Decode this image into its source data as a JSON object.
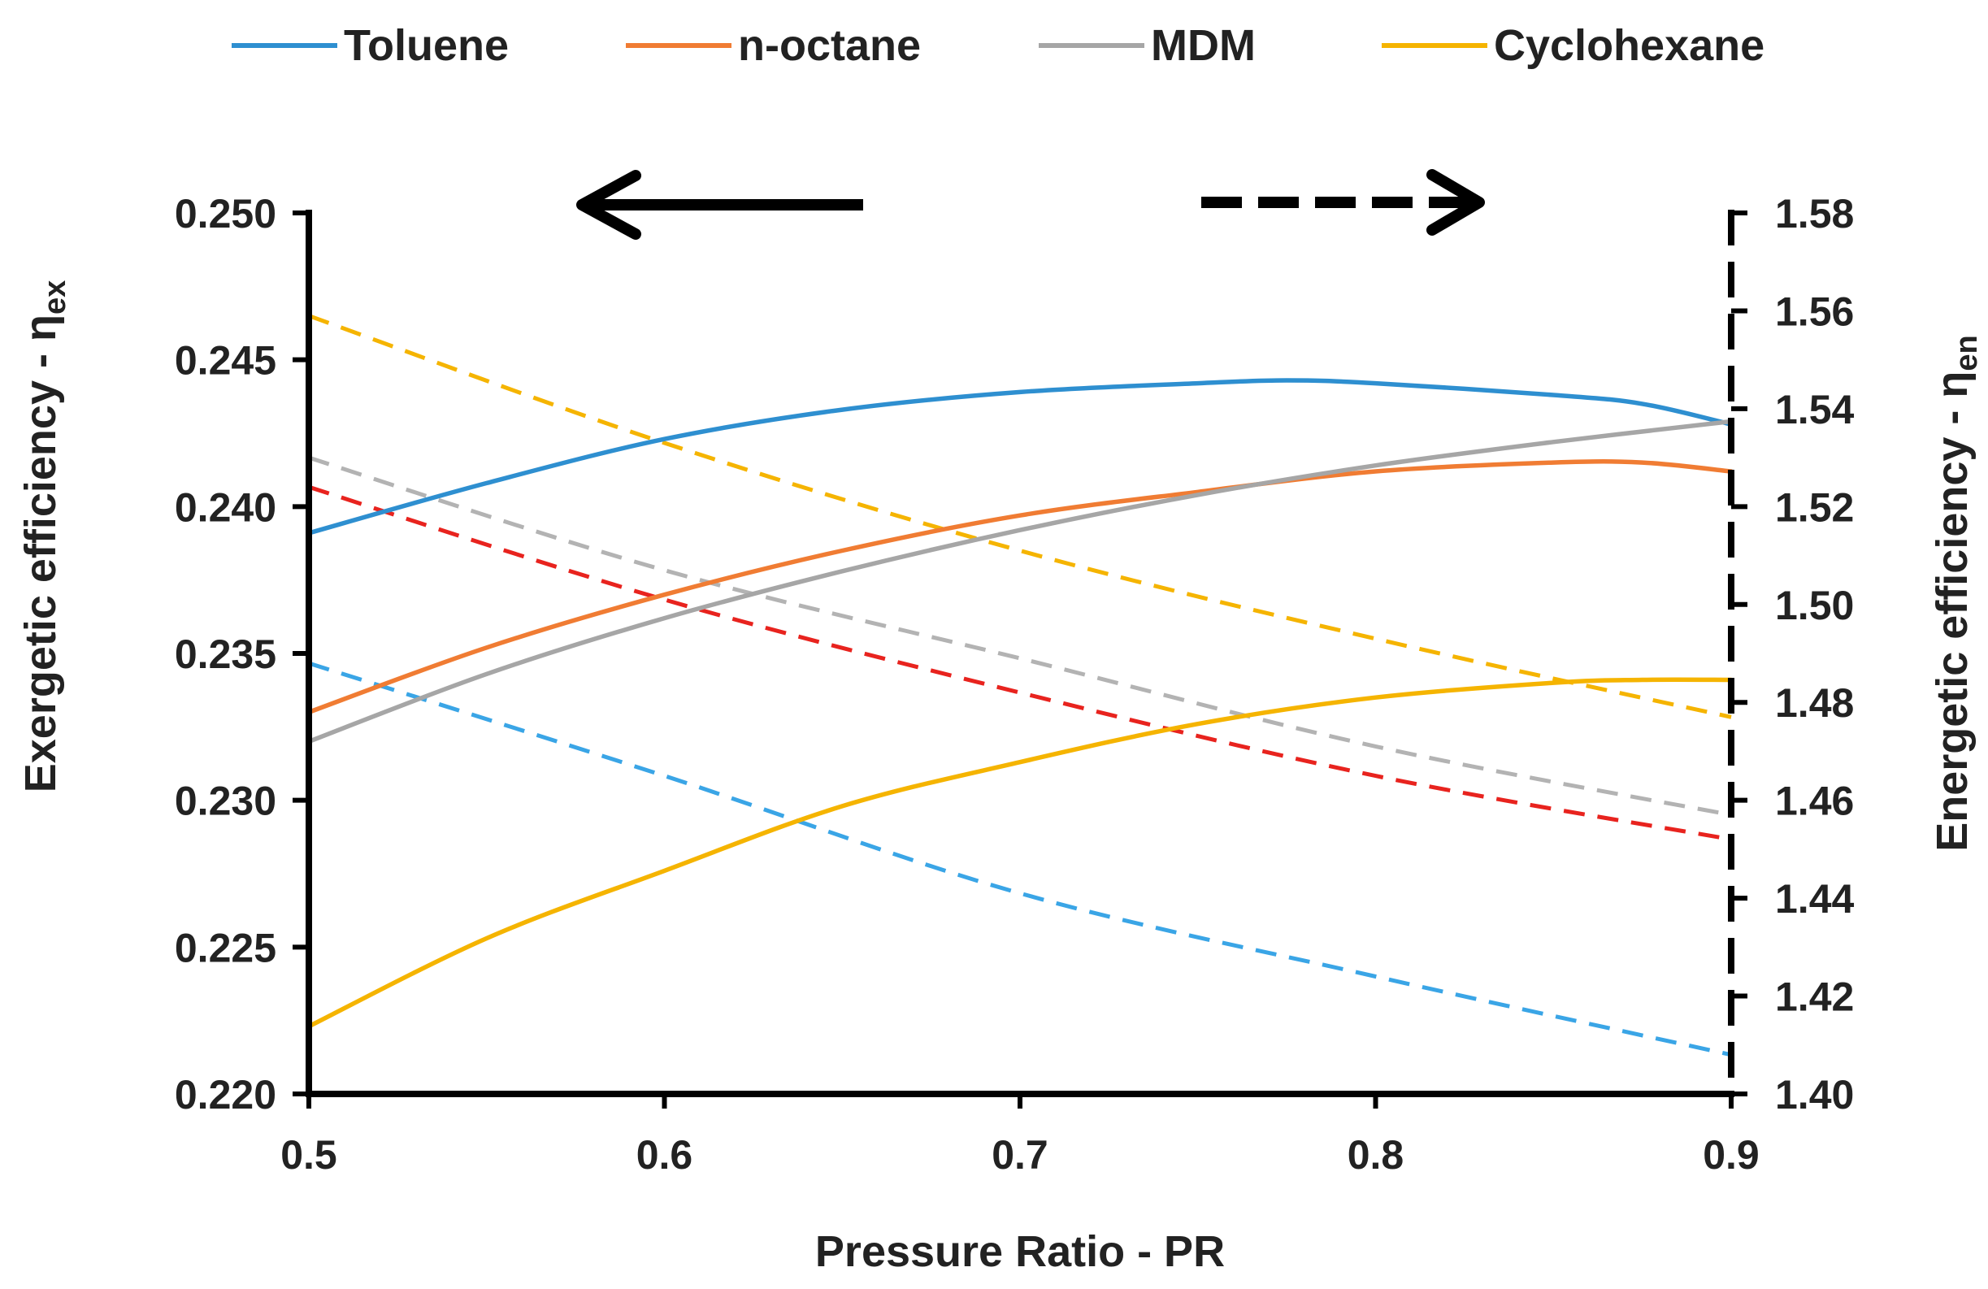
{
  "chart_data": {
    "type": "line",
    "title": "",
    "xlabel": "Pressure Ratio - PR",
    "ylabel_left": "Exergetic efficiency - ",
    "ylabel_left_sub": "ex",
    "ylabel_left_symbol": "η",
    "ylabel_right": "Energetic efficiency - ",
    "ylabel_right_sub": "en",
    "ylabel_right_symbol": "η",
    "xlim": [
      0.5,
      0.9
    ],
    "ylim_left": [
      0.22,
      0.25
    ],
    "ylim_right": [
      1.4,
      1.58
    ],
    "x_ticks": [
      "0.5",
      "0.6",
      "0.7",
      "0.8",
      "0.9"
    ],
    "y_left_ticks": [
      "0.220",
      "0.225",
      "0.230",
      "0.235",
      "0.240",
      "0.245",
      "0.250"
    ],
    "y_right_ticks": [
      "1.40",
      "1.42",
      "1.44",
      "1.46",
      "1.48",
      "1.50",
      "1.52",
      "1.54",
      "1.56",
      "1.58"
    ],
    "legend_position": "top",
    "annotations": [
      {
        "type": "arrow",
        "style": "solid",
        "direction": "left",
        "meaning": "solid lines use left axis"
      },
      {
        "type": "arrow",
        "style": "dashed",
        "direction": "right",
        "meaning": "dashed lines use right axis"
      }
    ],
    "exergetic_series": [
      {
        "name": "Toluene",
        "color": "#2e8fd0",
        "axis": "left",
        "style": "solid",
        "x": [
          0.5,
          0.55,
          0.6,
          0.65,
          0.7,
          0.75,
          0.775,
          0.8,
          0.85,
          0.875,
          0.9
        ],
        "y": [
          0.2391,
          0.2408,
          0.2423,
          0.2433,
          0.2439,
          0.2442,
          0.2443,
          0.2442,
          0.2438,
          0.2435,
          0.2428
        ]
      },
      {
        "name": "n-octane",
        "color": "#f07c33",
        "axis": "left",
        "style": "solid",
        "x": [
          0.5,
          0.55,
          0.6,
          0.65,
          0.7,
          0.75,
          0.8,
          0.85,
          0.875,
          0.9
        ],
        "y": [
          0.233,
          0.2352,
          0.237,
          0.2385,
          0.2397,
          0.2405,
          0.2412,
          0.2415,
          0.2415,
          0.2412
        ]
      },
      {
        "name": "MDM",
        "color": "#a6a6a6",
        "axis": "left",
        "style": "solid",
        "x": [
          0.5,
          0.55,
          0.6,
          0.65,
          0.7,
          0.75,
          0.8,
          0.85,
          0.9
        ],
        "y": [
          0.232,
          0.2343,
          0.2362,
          0.2378,
          0.2392,
          0.2404,
          0.2414,
          0.2422,
          0.2429
        ]
      },
      {
        "name": "Cyclohexane",
        "color": "#f5b400",
        "axis": "left",
        "style": "solid",
        "x": [
          0.5,
          0.55,
          0.6,
          0.65,
          0.7,
          0.75,
          0.8,
          0.85,
          0.875,
          0.9
        ],
        "y": [
          0.2223,
          0.2253,
          0.2276,
          0.2298,
          0.2313,
          0.2326,
          0.2335,
          0.234,
          0.2341,
          0.2341
        ]
      }
    ],
    "energetic_series": [
      {
        "name": "Toluene",
        "color": "#3aa5e6",
        "axis": "right",
        "style": "dashed",
        "x": [
          0.5,
          0.6,
          0.7,
          0.8,
          0.9
        ],
        "y": [
          1.488,
          1.465,
          1.441,
          1.424,
          1.408
        ]
      },
      {
        "name": "n-octane",
        "color": "#e8231e",
        "axis": "right",
        "style": "dashed",
        "x": [
          0.5,
          0.6,
          0.7,
          0.8,
          0.9
        ],
        "y": [
          1.524,
          1.501,
          1.482,
          1.465,
          1.452
        ]
      },
      {
        "name": "MDM",
        "color": "#b3b3b3",
        "axis": "right",
        "style": "dashed",
        "x": [
          0.5,
          0.6,
          0.7,
          0.8,
          0.9
        ],
        "y": [
          1.53,
          1.507,
          1.489,
          1.471,
          1.457
        ]
      },
      {
        "name": "Cyclohexane",
        "color": "#f5b400",
        "axis": "right",
        "style": "dashed",
        "x": [
          0.5,
          0.6,
          0.7,
          0.8,
          0.9
        ],
        "y": [
          1.559,
          1.533,
          1.511,
          1.493,
          1.477
        ]
      }
    ],
    "legend": [
      {
        "name": "Toluene",
        "color": "#2e8fd0"
      },
      {
        "name": "n-octane",
        "color": "#f07c33"
      },
      {
        "name": "MDM",
        "color": "#a6a6a6"
      },
      {
        "name": "Cyclohexane",
        "color": "#f5b400"
      }
    ]
  }
}
